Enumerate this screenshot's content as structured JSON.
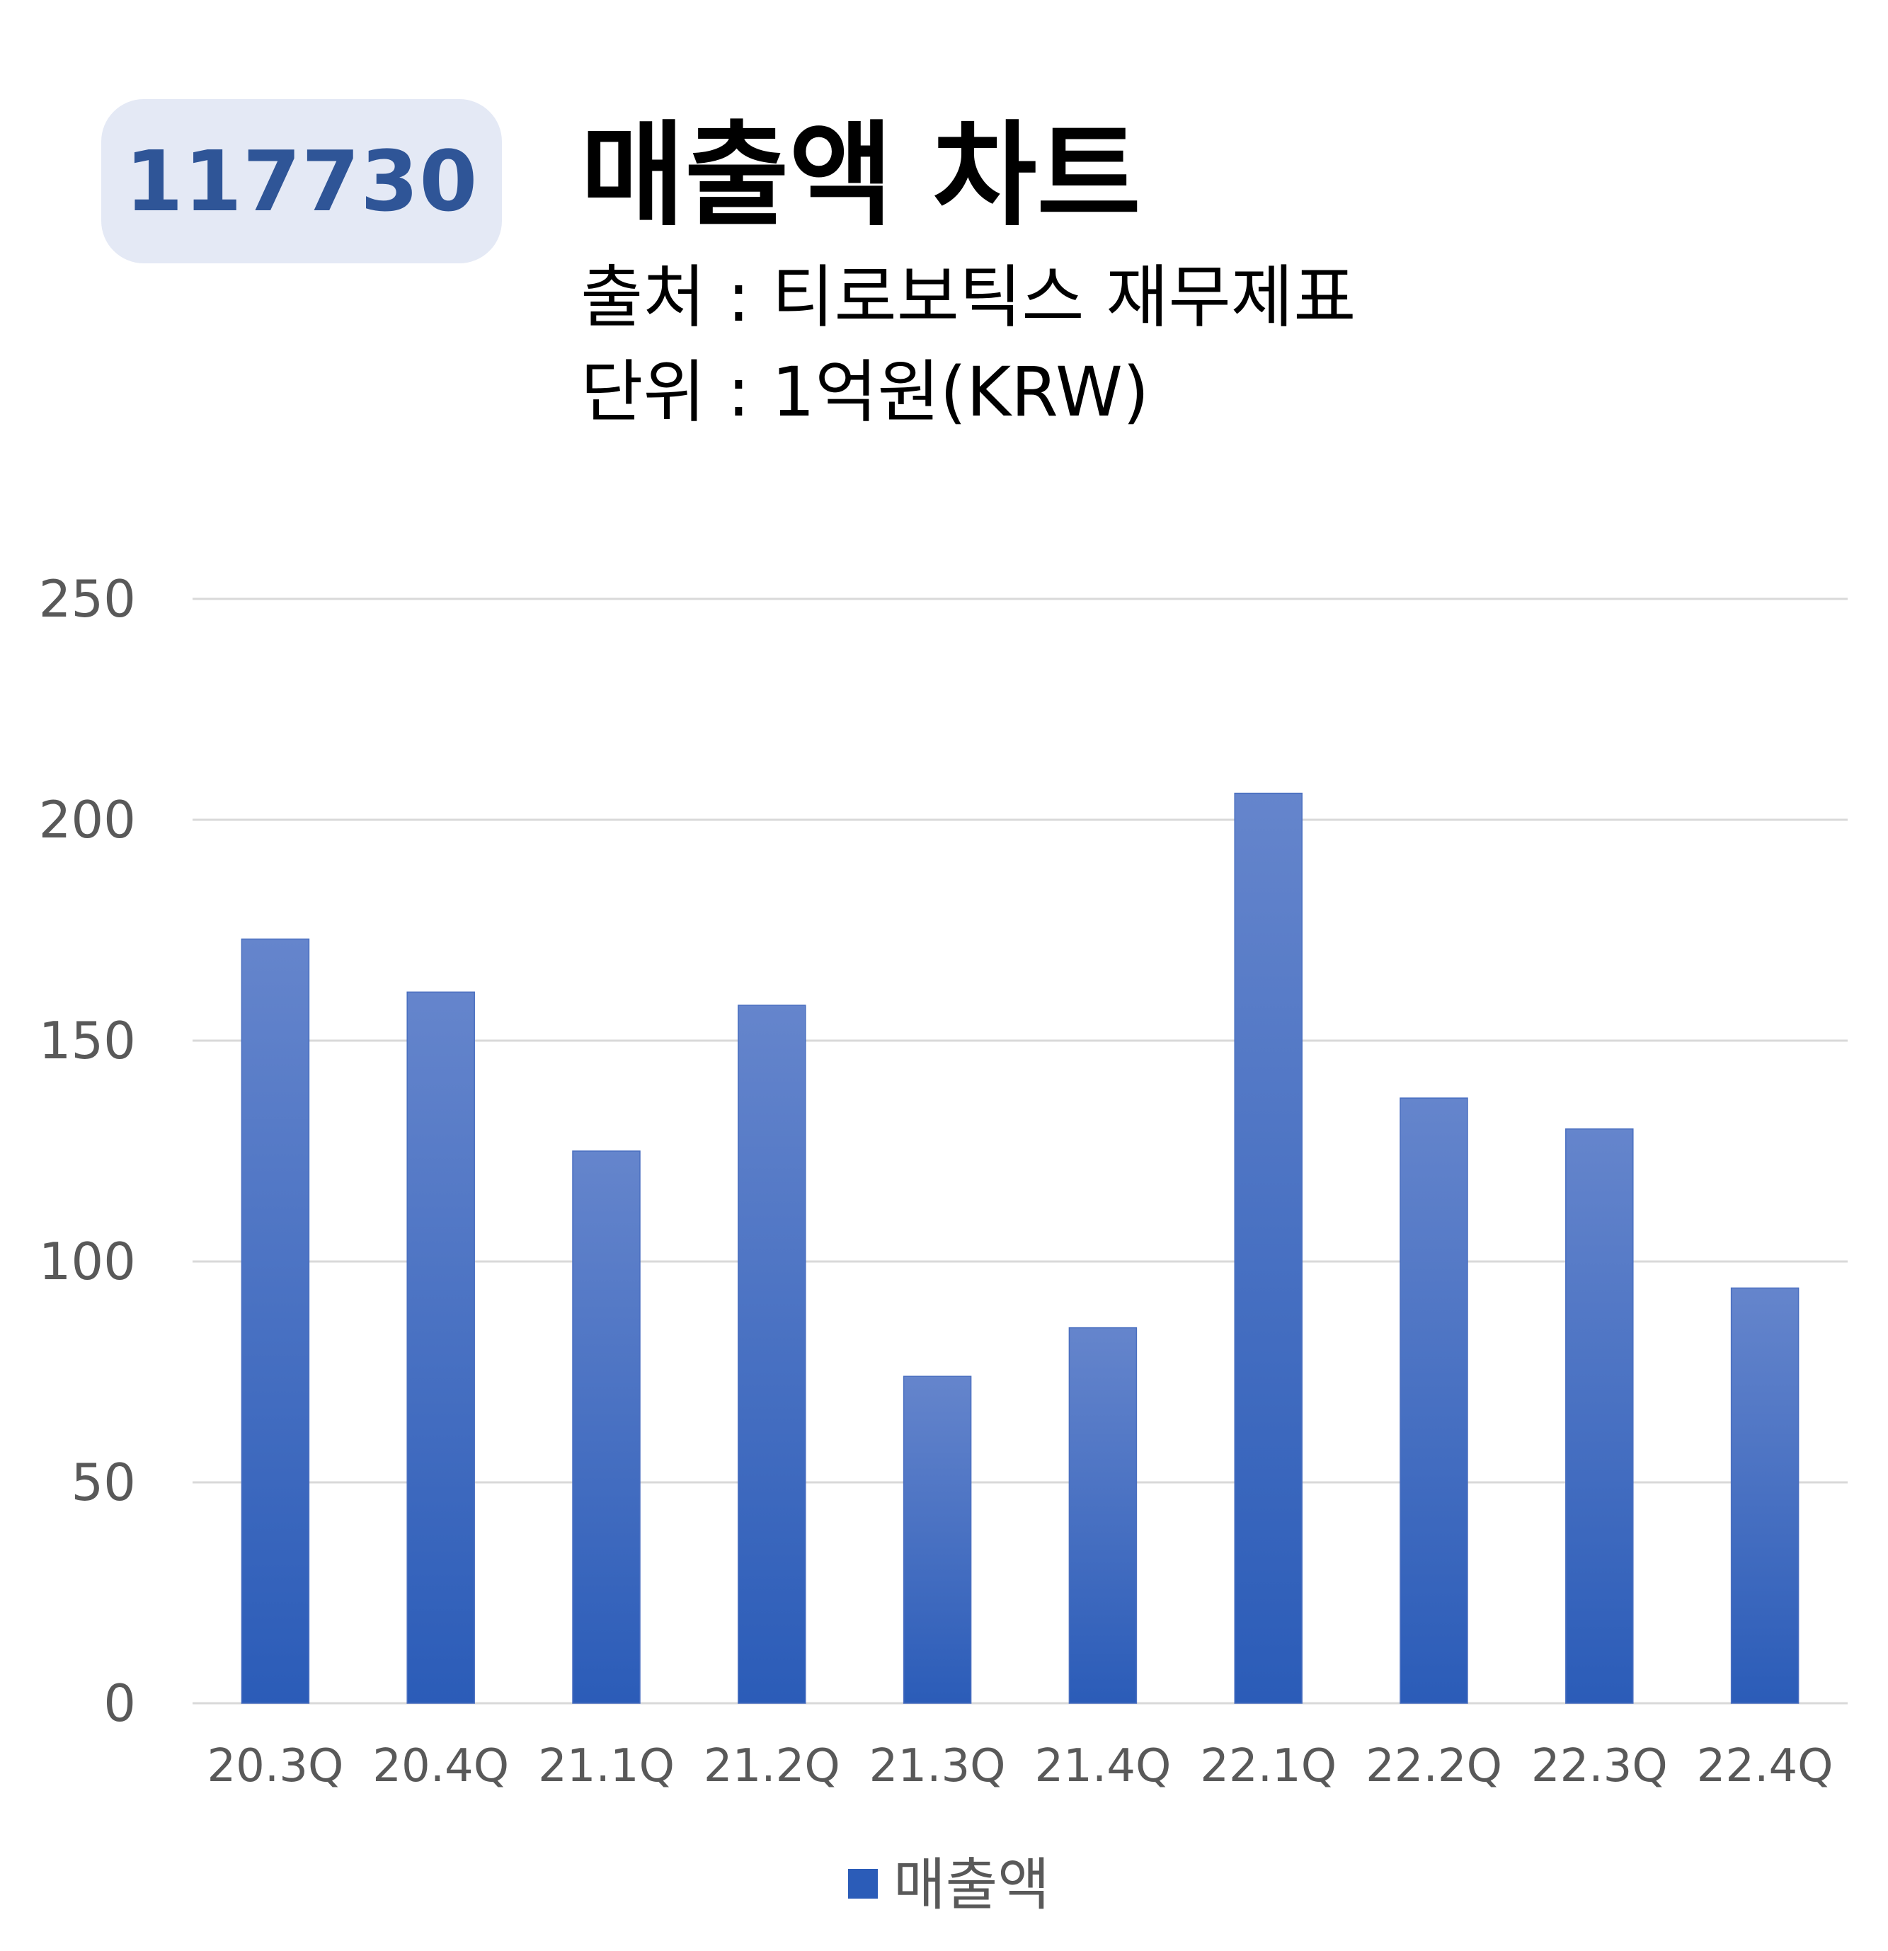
{
  "header": {
    "ticker": "117730",
    "title": "매출액 차트",
    "source": "출처 : 티로보틱스 재무제표",
    "unit": "단위 : 1억원(KRW)"
  },
  "colors": {
    "bar_top": "#6585cc",
    "bar_bottom": "#2b5cb8",
    "grid": "#d9d9d9",
    "axis_text": "#595959",
    "badge_bg": "#e4e9f5",
    "badge_text": "#2f5597"
  },
  "chart_data": {
    "type": "bar",
    "categories": [
      "20.3Q",
      "20.4Q",
      "21.1Q",
      "21.2Q",
      "21.3Q",
      "21.4Q",
      "22.1Q",
      "22.2Q",
      "22.3Q",
      "22.4Q"
    ],
    "series": [
      {
        "name": "매출액",
        "values": [
          173,
          161,
          125,
          158,
          74,
          85,
          206,
          137,
          130,
          94
        ]
      }
    ],
    "yticks": [
      "0",
      "50",
      "100",
      "150",
      "200",
      "250"
    ],
    "ylim": [
      0,
      250
    ],
    "grid": true,
    "legend": "bottom"
  }
}
